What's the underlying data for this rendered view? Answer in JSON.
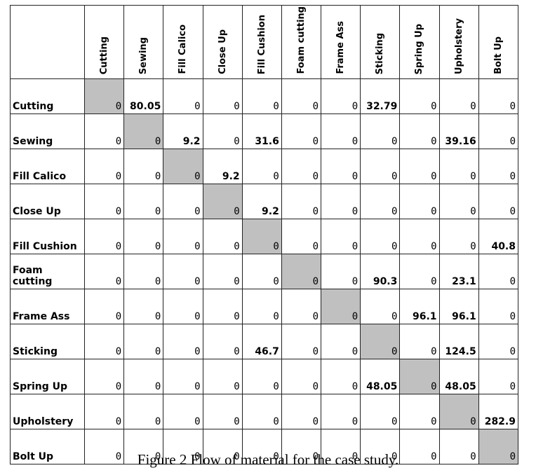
{
  "table": {
    "columns": [
      "Cutting",
      "Sewing",
      "Fill Calico",
      "Close Up",
      "Fill Cushion",
      "Foam cutting",
      "Frame Ass",
      "Sticking",
      "Spring Up",
      "Upholstery",
      "Bolt Up"
    ],
    "rows": [
      {
        "label": "Cutting",
        "values": [
          0,
          80.05,
          0,
          0,
          0,
          0,
          0,
          32.79,
          0,
          0,
          0
        ]
      },
      {
        "label": "Sewing",
        "values": [
          0,
          0,
          9.2,
          0,
          31.6,
          0,
          0,
          0,
          0,
          39.16,
          0
        ]
      },
      {
        "label": "Fill Calico",
        "values": [
          0,
          0,
          0,
          9.2,
          0,
          0,
          0,
          0,
          0,
          0,
          0
        ]
      },
      {
        "label": "Close Up",
        "values": [
          0,
          0,
          0,
          0,
          9.2,
          0,
          0,
          0,
          0,
          0,
          0
        ]
      },
      {
        "label": "Fill Cushion",
        "values": [
          0,
          0,
          0,
          0,
          0,
          0,
          0,
          0,
          0,
          0,
          40.8
        ]
      },
      {
        "label": "Foam cutting",
        "values": [
          0,
          0,
          0,
          0,
          0,
          0,
          0,
          90.3,
          0,
          23.1,
          0
        ]
      },
      {
        "label": "Frame Ass",
        "values": [
          0,
          0,
          0,
          0,
          0,
          0,
          0,
          0,
          96.1,
          96.1,
          0
        ]
      },
      {
        "label": "Sticking",
        "values": [
          0,
          0,
          0,
          0,
          46.7,
          0,
          0,
          0,
          0,
          124.5,
          0
        ]
      },
      {
        "label": "Spring Up",
        "values": [
          0,
          0,
          0,
          0,
          0,
          0,
          0,
          48.05,
          0,
          48.05,
          0
        ]
      },
      {
        "label": "Upholstery",
        "values": [
          0,
          0,
          0,
          0,
          0,
          0,
          0,
          0,
          0,
          0,
          282.9
        ]
      },
      {
        "label": "Bolt Up",
        "values": [
          0,
          0,
          0,
          0,
          0,
          0,
          0,
          0,
          0,
          0,
          0
        ]
      }
    ]
  },
  "caption": "Figure 2 Flow of material for the case study."
}
